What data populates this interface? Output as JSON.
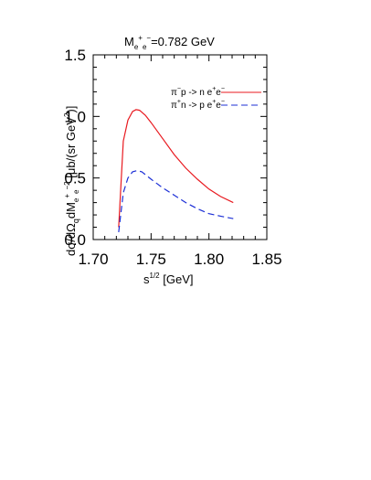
{
  "chart_data": {
    "type": "line",
    "title": {
      "prefix": "M",
      "sub": "e",
      "sup1": "+",
      "sub2": "e",
      "sup2": "−",
      "suffix": "=0.782 GeV"
    },
    "xlabel": {
      "main": "s",
      "sup": "1/2",
      "unit": " [GeV]"
    },
    "ylabel": {
      "p1": "dσ/dΩ",
      "q": "q",
      "p2": "dM",
      "ee1": "e",
      "plus": "+",
      "ee2": "e",
      "minus": "−",
      "sq": "2",
      "p3": " [μb/(sr GeV",
      "sq2": "2",
      "p4": ")]"
    },
    "xlim": [
      1.7,
      1.85
    ],
    "ylim": [
      0.0,
      1.5
    ],
    "xticks": [
      "1.70",
      "1.75",
      "1.80",
      "1.85"
    ],
    "yticks": [
      "0.0",
      "0.5",
      "1.0",
      "1.5"
    ],
    "xtick_values": [
      1.7,
      1.75,
      1.8,
      1.85
    ],
    "ytick_values": [
      0.0,
      0.5,
      1.0,
      1.5
    ],
    "grid": false,
    "legend_position": "top-right",
    "series": [
      {
        "name": "π⁻p → n e⁺e⁻",
        "legend": {
          "pi": "π",
          "pi_sign": "−",
          "rest": "p -> n e",
          "e1": "+",
          "e": "e",
          "e2": "−"
        },
        "color": "#e8191f",
        "dash": "solid",
        "x": [
          1.722,
          1.726,
          1.73,
          1.734,
          1.737,
          1.74,
          1.745,
          1.75,
          1.76,
          1.77,
          1.78,
          1.79,
          1.8,
          1.81,
          1.821
        ],
        "y": [
          0.1,
          0.8,
          0.97,
          1.04,
          1.055,
          1.05,
          1.01,
          0.95,
          0.82,
          0.69,
          0.58,
          0.49,
          0.41,
          0.35,
          0.3
        ]
      },
      {
        "name": "π⁺n → p e⁺e⁻",
        "legend": {
          "pi": "π",
          "pi_sign": "+",
          "rest": "n -> p e",
          "e1": "+",
          "e": "e",
          "e2": "−"
        },
        "color": "#1c2fd6",
        "dash": "7,4",
        "x": [
          1.722,
          1.726,
          1.73,
          1.734,
          1.738,
          1.742,
          1.746,
          1.75,
          1.76,
          1.77,
          1.78,
          1.79,
          1.8,
          1.81,
          1.821
        ],
        "y": [
          0.06,
          0.38,
          0.5,
          0.55,
          0.56,
          0.55,
          0.52,
          0.49,
          0.42,
          0.36,
          0.3,
          0.25,
          0.21,
          0.19,
          0.17
        ]
      }
    ]
  }
}
